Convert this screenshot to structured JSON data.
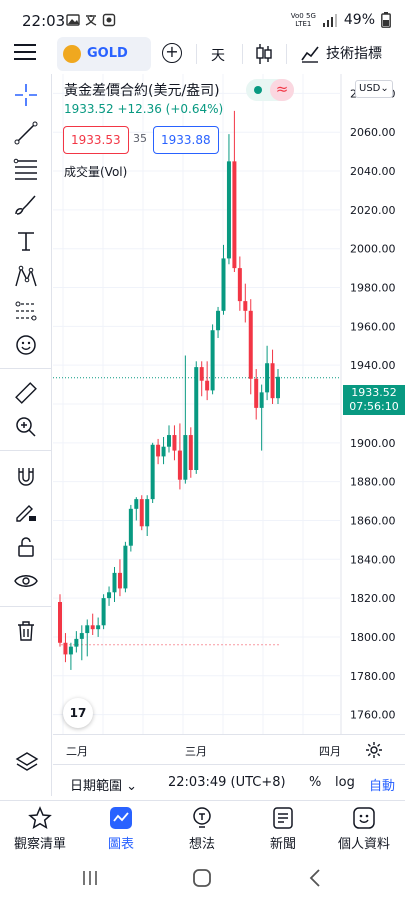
{
  "status_bar": {
    "time": "22:03",
    "network_top": "Vo0 5G",
    "network_bottom": "LTE1",
    "battery": "49%"
  },
  "toolbar": {
    "symbol": "GOLD",
    "add_symbol_icon": "plus-circle-icon",
    "interval": "天",
    "chart_type_icon": "candles-icon",
    "indicators_label": "技術指標"
  },
  "left_tools": [
    {
      "name": "crosshair-icon"
    },
    {
      "name": "trend-line-icon"
    },
    {
      "name": "fib-retracement-icon"
    },
    {
      "name": "brush-icon"
    },
    {
      "name": "text-icon"
    },
    {
      "name": "pattern-icon"
    },
    {
      "name": "prediction-icon"
    },
    {
      "name": "emoji-icon"
    },
    {
      "name": "ruler-icon"
    },
    {
      "name": "zoom-in-icon"
    },
    {
      "name": "magnet-icon"
    },
    {
      "name": "lock-pencil-icon"
    },
    {
      "name": "lock-icon"
    },
    {
      "name": "eye-icon"
    },
    {
      "name": "trash-icon"
    },
    {
      "name": "layers-icon"
    }
  ],
  "legend": {
    "title": "黃金差價合約(美元/盎司)",
    "last": "1933.52",
    "change": "+12.36 (+0.64%)",
    "sell_price": "1933.53",
    "spread": "35",
    "buy_price": "1933.88",
    "volume_label": "成交量(Vol)",
    "currency": "USD"
  },
  "price_tag": {
    "price": "1933.52",
    "countdown": "07:56:10"
  },
  "colors": {
    "up": "#089981",
    "down": "#f23645",
    "accent": "#2962ff"
  },
  "chart_data": {
    "type": "candlestick",
    "ylim": [
      1750,
      2090
    ],
    "y_ticks": [
      1760,
      1780,
      1800,
      1820,
      1840,
      1860,
      1880,
      1900,
      1920,
      1940,
      1960,
      1980,
      2000,
      2020,
      2040,
      2060,
      2080
    ],
    "y_tick_labels": [
      "1760.00",
      "1780.00",
      "1800.00",
      "1820.00",
      "1840.00",
      "1860.00",
      "1880.00",
      "1900.00",
      "1920.00",
      "1940.00",
      "1960.00",
      "1980.00",
      "2000.00",
      "2020.00",
      "2040.00",
      "2060.00",
      "2080.00"
    ],
    "x_labels": [
      "二月",
      "三月",
      "四月"
    ],
    "last_price": 1933.52,
    "candles": [
      {
        "o": 1818,
        "h": 1822,
        "l": 1795,
        "c": 1797
      },
      {
        "o": 1797,
        "h": 1802,
        "l": 1787,
        "c": 1791
      },
      {
        "o": 1791,
        "h": 1797,
        "l": 1783,
        "c": 1795
      },
      {
        "o": 1795,
        "h": 1803,
        "l": 1792,
        "c": 1799
      },
      {
        "o": 1799,
        "h": 1806,
        "l": 1788,
        "c": 1802
      },
      {
        "o": 1802,
        "h": 1809,
        "l": 1790,
        "c": 1806
      },
      {
        "o": 1806,
        "h": 1812,
        "l": 1801,
        "c": 1804
      },
      {
        "o": 1804,
        "h": 1810,
        "l": 1800,
        "c": 1806
      },
      {
        "o": 1806,
        "h": 1822,
        "l": 1804,
        "c": 1820
      },
      {
        "o": 1820,
        "h": 1826,
        "l": 1816,
        "c": 1823
      },
      {
        "o": 1823,
        "h": 1836,
        "l": 1818,
        "c": 1833
      },
      {
        "o": 1833,
        "h": 1840,
        "l": 1821,
        "c": 1825
      },
      {
        "o": 1825,
        "h": 1849,
        "l": 1823,
        "c": 1847
      },
      {
        "o": 1847,
        "h": 1868,
        "l": 1844,
        "c": 1866
      },
      {
        "o": 1866,
        "h": 1872,
        "l": 1860,
        "c": 1871
      },
      {
        "o": 1871,
        "h": 1873,
        "l": 1855,
        "c": 1857
      },
      {
        "o": 1857,
        "h": 1873,
        "l": 1852,
        "c": 1871
      },
      {
        "o": 1871,
        "h": 1900,
        "l": 1869,
        "c": 1899
      },
      {
        "o": 1899,
        "h": 1902,
        "l": 1889,
        "c": 1893
      },
      {
        "o": 1893,
        "h": 1903,
        "l": 1889,
        "c": 1898
      },
      {
        "o": 1898,
        "h": 1909,
        "l": 1895,
        "c": 1904
      },
      {
        "o": 1904,
        "h": 1909,
        "l": 1891,
        "c": 1896
      },
      {
        "o": 1896,
        "h": 1910,
        "l": 1876,
        "c": 1881
      },
      {
        "o": 1881,
        "h": 1945,
        "l": 1879,
        "c": 1904
      },
      {
        "o": 1904,
        "h": 1908,
        "l": 1882,
        "c": 1886
      },
      {
        "o": 1886,
        "h": 1942,
        "l": 1884,
        "c": 1939
      },
      {
        "o": 1939,
        "h": 1942,
        "l": 1924,
        "c": 1932
      },
      {
        "o": 1932,
        "h": 1942,
        "l": 1922,
        "c": 1927
      },
      {
        "o": 1927,
        "h": 1961,
        "l": 1925,
        "c": 1958
      },
      {
        "o": 1958,
        "h": 1970,
        "l": 1954,
        "c": 1968
      },
      {
        "o": 1968,
        "h": 2002,
        "l": 1966,
        "c": 1995
      },
      {
        "o": 1995,
        "h": 2059,
        "l": 1992,
        "c": 2045
      },
      {
        "o": 2045,
        "h": 2071,
        "l": 1988,
        "c": 1990
      },
      {
        "o": 1990,
        "h": 1996,
        "l": 1968,
        "c": 1973
      },
      {
        "o": 1973,
        "h": 1982,
        "l": 1962,
        "c": 1968
      },
      {
        "o": 1968,
        "h": 1974,
        "l": 1925,
        "c": 1933
      },
      {
        "o": 1933,
        "h": 1938,
        "l": 1912,
        "c": 1918
      },
      {
        "o": 1918,
        "h": 1930,
        "l": 1896,
        "c": 1926
      },
      {
        "o": 1926,
        "h": 1950,
        "l": 1922,
        "c": 1941
      },
      {
        "o": 1941,
        "h": 1948,
        "l": 1920,
        "c": 1923
      },
      {
        "o": 1923,
        "h": 1938,
        "l": 1920,
        "c": 1934
      }
    ]
  },
  "time_axis": {
    "settings_icon": "gear-icon"
  },
  "chart_bar": {
    "date_range": "日期範圍",
    "clock": "22:03:49 (UTC+8)",
    "percent": "%",
    "log": "log",
    "auto": "自動"
  },
  "bottom_nav": [
    {
      "label": "觀察清單",
      "icon": "star-icon",
      "active": false
    },
    {
      "label": "圖表",
      "icon": "chart-icon",
      "active": true
    },
    {
      "label": "想法",
      "icon": "idea-icon",
      "active": false
    },
    {
      "label": "新聞",
      "icon": "news-icon",
      "active": false
    },
    {
      "label": "個人資料",
      "icon": "profile-icon",
      "active": false
    }
  ]
}
